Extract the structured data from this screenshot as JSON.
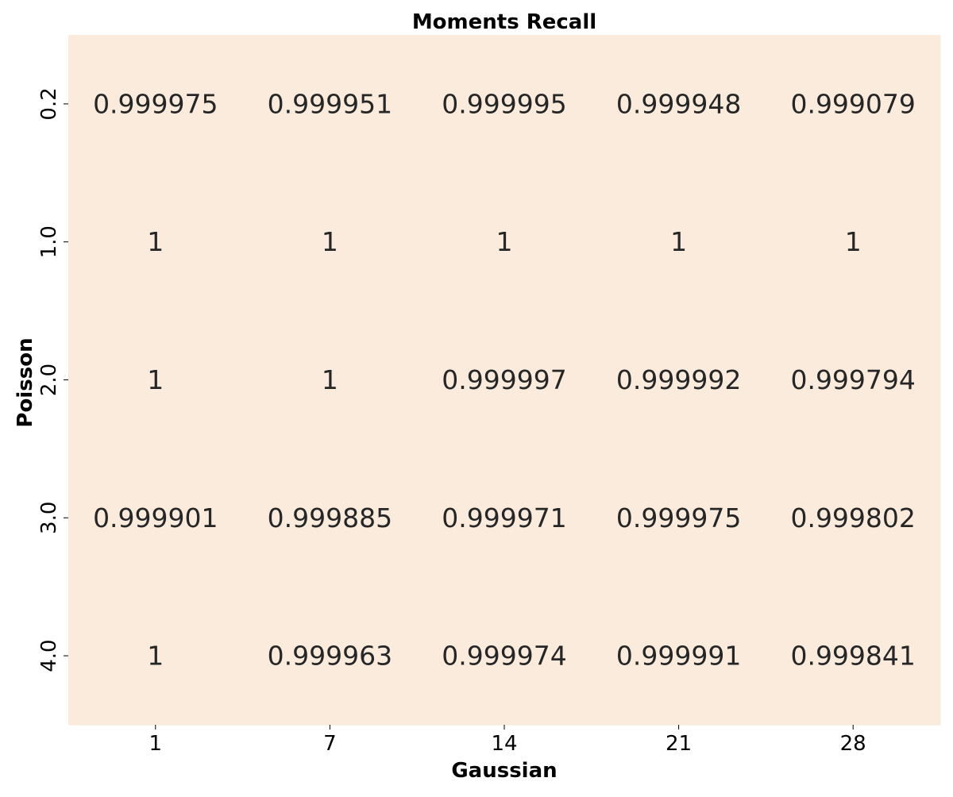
{
  "chart_data": {
    "type": "heatmap",
    "title": "Moments Recall",
    "xlabel": "Gaussian",
    "ylabel": "Poisson",
    "x_categories": [
      "1",
      "7",
      "14",
      "21",
      "28"
    ],
    "y_categories": [
      "0.2",
      "1.0",
      "2.0",
      "3.0",
      "4.0"
    ],
    "values": [
      [
        "0.999975",
        "0.999951",
        "0.999995",
        "0.999948",
        "0.999079"
      ],
      [
        "1",
        "1",
        "1",
        "1",
        "1"
      ],
      [
        "1",
        "1",
        "0.999997",
        "0.999992",
        "0.999794"
      ],
      [
        "0.999901",
        "0.999885",
        "0.999971",
        "0.999975",
        "0.999802"
      ],
      [
        "1",
        "0.999963",
        "0.999974",
        "0.999991",
        "0.999841"
      ]
    ],
    "cell_color": "#FAEBDD",
    "text_color": "#262626",
    "colorbar": false,
    "grid": false
  }
}
